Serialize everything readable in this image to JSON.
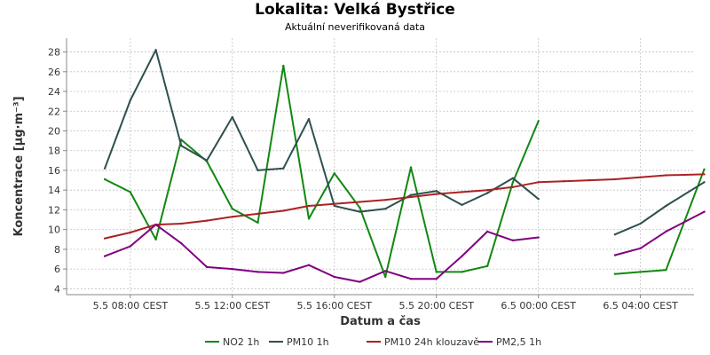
{
  "chart_data": {
    "type": "line",
    "title": "Lokalita: Velká Bystřice",
    "subtitle": "Aktuální neverifikovaná data",
    "xlabel": "Datum a čas",
    "ylabel": "Koncentrace [µg·m⁻³]",
    "ylim": [
      3.4,
      29.4
    ],
    "y_ticks": [
      4,
      6,
      8,
      10,
      12,
      14,
      16,
      18,
      20,
      22,
      24,
      26,
      28
    ],
    "x_range_hours": [
      5.5,
      30.1
    ],
    "x_ticks": [
      {
        "hour": 8,
        "label": "5.5 08:00 CEST"
      },
      {
        "hour": 12,
        "label": "5.5 12:00 CEST"
      },
      {
        "hour": 16,
        "label": "5.5 16:00 CEST"
      },
      {
        "hour": 20,
        "label": "5.5 20:00 CEST"
      },
      {
        "hour": 24,
        "label": "6.5 00:00 CEST"
      },
      {
        "hour": 28,
        "label": "6.5 04:00 CEST"
      }
    ],
    "grid": true,
    "legend_position": "bottom",
    "x": [
      7,
      8,
      9,
      10,
      11,
      12,
      13,
      14,
      15,
      16,
      17,
      18,
      19,
      20,
      21,
      22,
      23,
      24,
      25,
      26,
      27,
      28,
      29,
      30
    ],
    "series": [
      {
        "name": "NO2 1h",
        "color": "#118811",
        "values": [
          15.1,
          13.8,
          9.0,
          19.1,
          16.9,
          12.1,
          10.7,
          26.6,
          11.1,
          15.7,
          12.2,
          5.2,
          16.3,
          5.7,
          5.7,
          6.3,
          14.8,
          21.0,
          null,
          null,
          5.5,
          5.7,
          5.9,
          16.1
        ]
      },
      {
        "name": "PM10 1h",
        "color": "#2f4f4f",
        "values": [
          16.2,
          23.1,
          28.2,
          18.5,
          17.0,
          21.4,
          16.0,
          16.2,
          21.2,
          12.4,
          11.8,
          12.1,
          13.5,
          13.9,
          12.5,
          13.7,
          15.2,
          13.1,
          null,
          null,
          9.5,
          10.6,
          12.4,
          14.8
        ]
      },
      {
        "name": "PM10 24h klouzavě",
        "color": "#aa2222",
        "values": [
          9.1,
          9.7,
          10.5,
          10.6,
          10.9,
          11.3,
          11.6,
          11.9,
          12.4,
          12.6,
          12.8,
          13.0,
          13.3,
          13.6,
          13.8,
          14.0,
          14.3,
          14.8,
          14.9,
          15.0,
          15.1,
          15.3,
          15.5,
          15.6
        ]
      },
      {
        "name": "PM2,5 1h",
        "color": "#800080",
        "values": [
          7.3,
          8.3,
          10.5,
          8.6,
          6.2,
          6.0,
          5.7,
          5.6,
          6.4,
          5.2,
          4.7,
          5.8,
          5.0,
          5.0,
          7.3,
          9.8,
          8.9,
          9.2,
          null,
          null,
          7.4,
          8.1,
          9.8,
          11.8
        ]
      }
    ],
    "x_offsets": [
      0,
      0,
      0,
      0,
      0,
      0,
      0,
      0,
      0,
      0,
      0,
      0,
      0,
      0,
      0,
      0,
      0,
      0,
      0,
      0,
      0,
      0,
      0,
      0.5
    ]
  }
}
